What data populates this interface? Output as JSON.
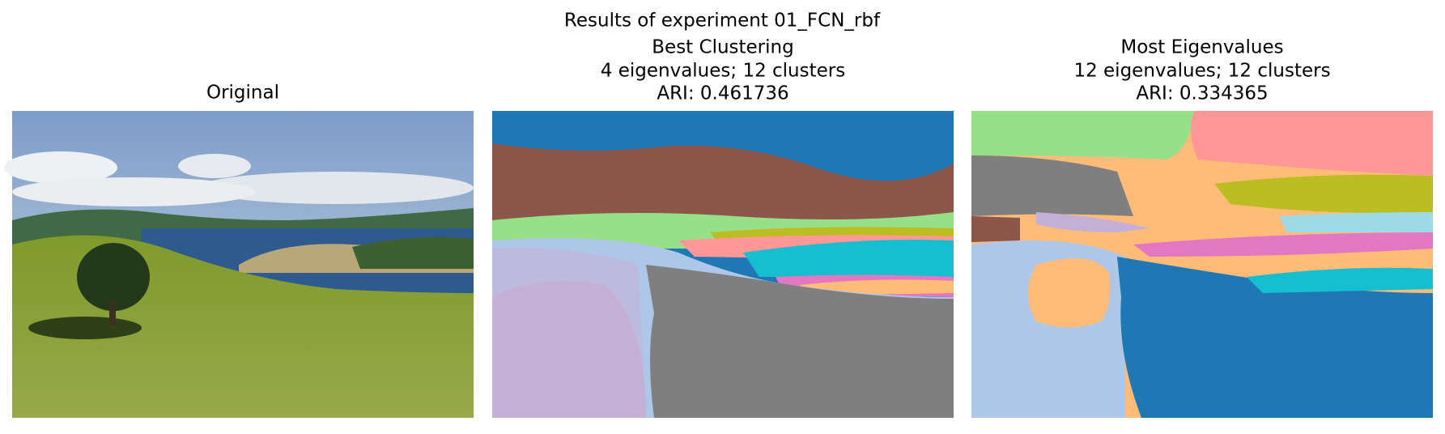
{
  "title": "Results of experiment 01_FCN_rbf",
  "panels": [
    {
      "title": [
        "Original"
      ]
    },
    {
      "title": [
        "Best Clustering",
        "4 eigenvalues; 12 clusters",
        "ARI: 0.461736"
      ]
    },
    {
      "title": [
        "Most Eigenvalues",
        "12 eigenvalues; 12 clusters",
        "ARI: 0.334365"
      ]
    }
  ]
}
